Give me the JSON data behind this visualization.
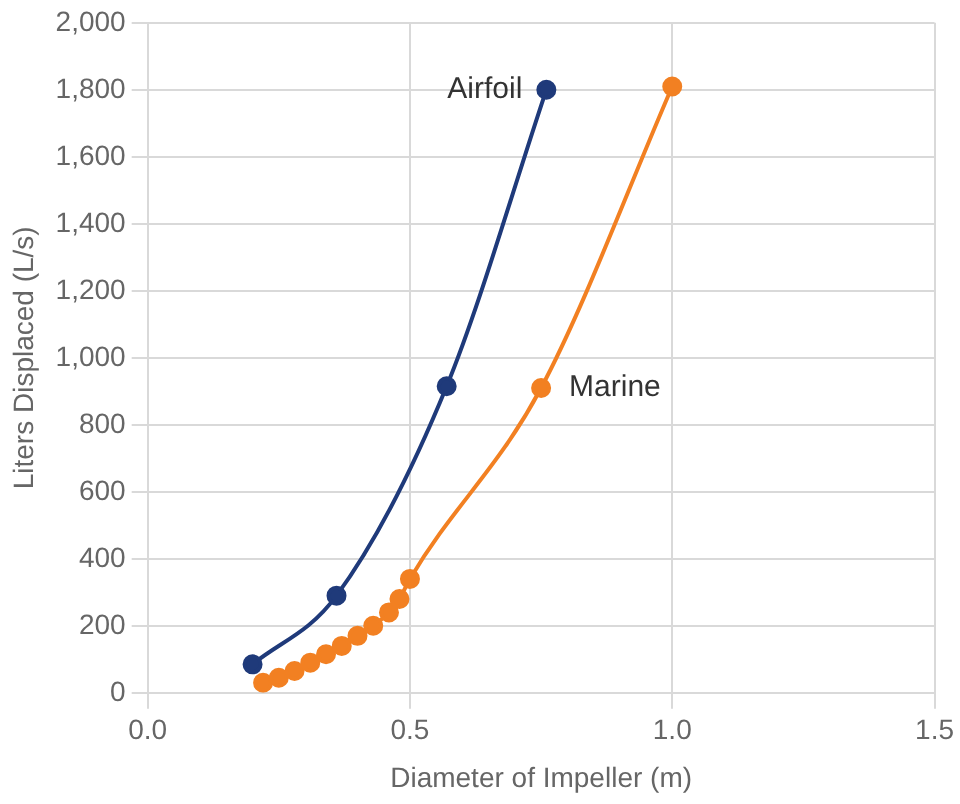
{
  "chart_data": {
    "type": "line",
    "xlabel": "Diameter of Impeller (m)",
    "ylabel": "Liters Displaced (L/s)",
    "xlim": [
      0,
      1.5
    ],
    "xticks": [
      {
        "value": 0,
        "label": "0.0"
      },
      0.5,
      {
        "value": 1,
        "label": "1.0"
      },
      1.5
    ],
    "ylim": [
      0,
      2000
    ],
    "yticks": [
      0,
      200,
      400,
      600,
      800,
      {
        "value": 1000,
        "label": "1,000"
      },
      {
        "value": 1200,
        "label": "1,200"
      },
      {
        "value": 1400,
        "label": "1,400"
      },
      {
        "value": 1600,
        "label": "1,600"
      },
      {
        "value": 1800,
        "label": "1,800"
      },
      {
        "value": 2000,
        "label": "2,000"
      }
    ],
    "grid": true,
    "legend": false,
    "marker": "circle",
    "series": [
      {
        "name": "Airfoil",
        "color": "#1f3a7a",
        "x": [
          0.2,
          0.36,
          0.57,
          0.76
        ],
        "values": [
          85,
          290,
          915,
          1800
        ]
      },
      {
        "name": "Marine",
        "color": "#f28022",
        "x": [
          0.22,
          0.25,
          0.28,
          0.31,
          0.34,
          0.37,
          0.4,
          0.43,
          0.46,
          0.48,
          0.5,
          0.75,
          1.0
        ],
        "values": [
          30,
          45,
          65,
          90,
          115,
          140,
          170,
          200,
          240,
          280,
          340,
          910,
          1810
        ]
      }
    ]
  }
}
